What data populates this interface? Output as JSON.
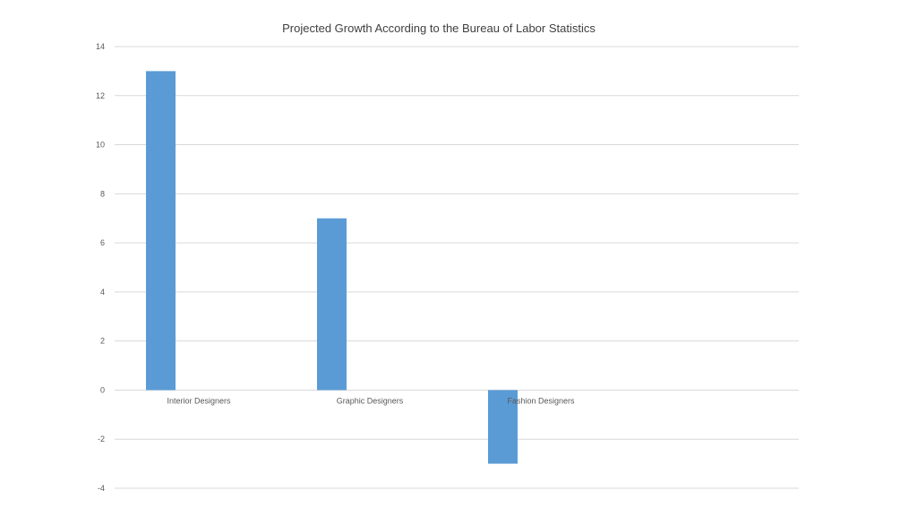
{
  "chart_data": {
    "type": "bar",
    "title": "Projected Growth According to the Bureau of Labor Statistics",
    "categories": [
      "Interior Designers",
      "Graphic Designers",
      "Fashion Designers"
    ],
    "series": [
      {
        "values": [
          13,
          7,
          -3
        ]
      }
    ],
    "ylim": [
      -4,
      14
    ],
    "yticks": [
      -4,
      -2,
      0,
      2,
      4,
      6,
      8,
      10,
      12,
      14
    ],
    "xlabel": "",
    "ylabel": "",
    "grid": true,
    "bar_color": "#5b9bd5"
  }
}
